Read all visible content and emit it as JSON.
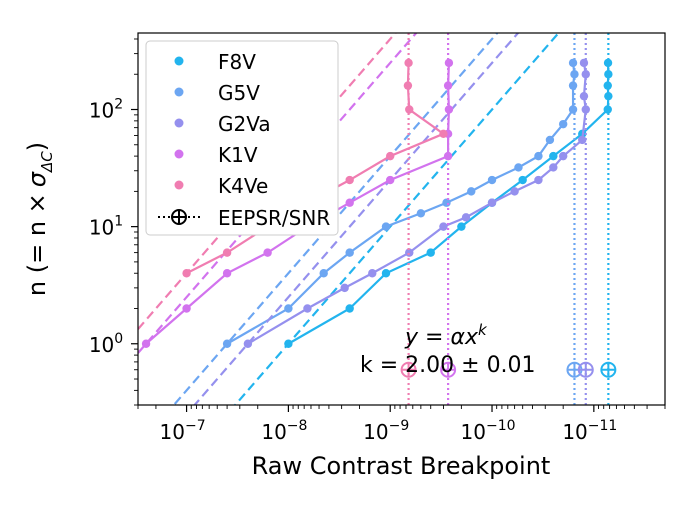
{
  "chart_data": {
    "type": "line",
    "xlabel": "Raw Contrast Breakpoint",
    "ylabel_prefix": "n (= n ×",
    "ylabel_sigma": "σ",
    "ylabel_sub": "ΔC",
    "ylabel_suffix": ")",
    "x_scale": "log-reversed",
    "y_scale": "log",
    "xlim": [
      3e-07,
      2e-12
    ],
    "ylim": [
      0.3,
      450
    ],
    "x_ticks": [
      {
        "value": 1e-07,
        "label": "10",
        "exp": "−7"
      },
      {
        "value": 1e-08,
        "label": "10",
        "exp": "−8"
      },
      {
        "value": 1e-09,
        "label": "10",
        "exp": "−9"
      },
      {
        "value": 1e-10,
        "label": "10",
        "exp": "−10"
      },
      {
        "value": 1e-11,
        "label": "10",
        "exp": "−11"
      }
    ],
    "y_ticks": [
      {
        "value": 1,
        "label": "10",
        "exp": "0"
      },
      {
        "value": 10,
        "label": "10",
        "exp": "1"
      },
      {
        "value": 100,
        "label": "10",
        "exp": "2"
      }
    ],
    "annotation_formula": "y = αx",
    "annotation_formula_exp": "k",
    "annotation_k": "k = 2.00 ± 0.01",
    "eepsr_marker_y": 0.6,
    "legend": {
      "position": "top-left",
      "entries": [
        "F8V",
        "G5V",
        "G2Va",
        "K1V",
        "K4Ve"
      ],
      "eepsr_label": "EEPSR/SNR"
    },
    "series": [
      {
        "name": "F8V",
        "color": "#22b4ee",
        "x": [
          1e-08,
          2.5e-09,
          1.1e-09,
          4e-10,
          2e-10,
          1e-10,
          5e-11,
          2.5e-11,
          1.3e-11,
          7.3e-12,
          7.2e-12,
          7.3e-12,
          7.2e-12,
          7.25e-12
        ],
        "y": [
          1,
          2,
          4,
          6,
          10,
          16,
          25,
          40,
          62,
          100,
          130,
          160,
          200,
          250
        ],
        "fit": {
          "a": 0.01,
          "k": 2
        },
        "eepsr": 7.2e-12
      },
      {
        "name": "G5V",
        "color": "#6ca6f2",
        "x": [
          4e-08,
          1e-08,
          4.5e-09,
          2.5e-09,
          1.1e-09,
          5e-10,
          2.8e-10,
          1.6e-10,
          1e-10,
          5.5e-11,
          3.5e-11,
          2.7e-11,
          2e-11,
          1.6e-11,
          1.6e-11,
          1.55e-11,
          1.6e-11
        ],
        "y": [
          1,
          2,
          4,
          6,
          10,
          13,
          16,
          20,
          25,
          32,
          40,
          55,
          75,
          100,
          160,
          200,
          250
        ],
        "fit": {
          "a": 0.0056,
          "k": 2
        },
        "eepsr": 1.55e-11
      },
      {
        "name": "G2Va",
        "color": "#9590ee",
        "x": [
          2.5e-08,
          6.5e-09,
          2.8e-09,
          1.5e-09,
          6.5e-10,
          3e-10,
          1.8e-10,
          1e-10,
          6e-11,
          3.5e-11,
          2.5e-11,
          2e-11,
          1.3e-11,
          1.2e-11,
          1.25e-11,
          1.2e-11,
          1.25e-11
        ],
        "y": [
          1,
          2,
          3,
          4,
          6,
          10,
          12,
          16,
          20,
          25,
          32,
          40,
          55,
          100,
          130,
          200,
          250
        ],
        "fit": {
          "a": 0.0068,
          "k": 2
        },
        "eepsr": 1.2e-11
      },
      {
        "name": "K1V",
        "color": "#d273ee",
        "x": [
          2.5e-07,
          1e-07,
          4e-08,
          1.6e-08,
          6.5e-09,
          2.5e-09,
          1e-09,
          2.7e-10,
          2.7e-10,
          2.65e-10,
          2.7e-10,
          2.65e-10
        ],
        "y": [
          1,
          2,
          4,
          6,
          10,
          16,
          25,
          40,
          62,
          100,
          160,
          250
        ],
        "fit": {
          "a": 0.0016,
          "k": 2
        },
        "eepsr": 2.7e-10
      },
      {
        "name": "K4Ve",
        "color": "#f07db1",
        "x": [
          1e-07,
          4e-08,
          1.6e-08,
          6.5e-09,
          2.5e-09,
          1e-09,
          3e-10,
          6.5e-10,
          6.7e-10,
          6.6e-10
        ],
        "y": [
          4,
          6,
          10,
          16,
          25,
          40,
          62,
          100,
          160,
          250
        ],
        "fit": {
          "a": 0.00078,
          "k": 2
        },
        "eepsr": 6.6e-10
      }
    ]
  }
}
